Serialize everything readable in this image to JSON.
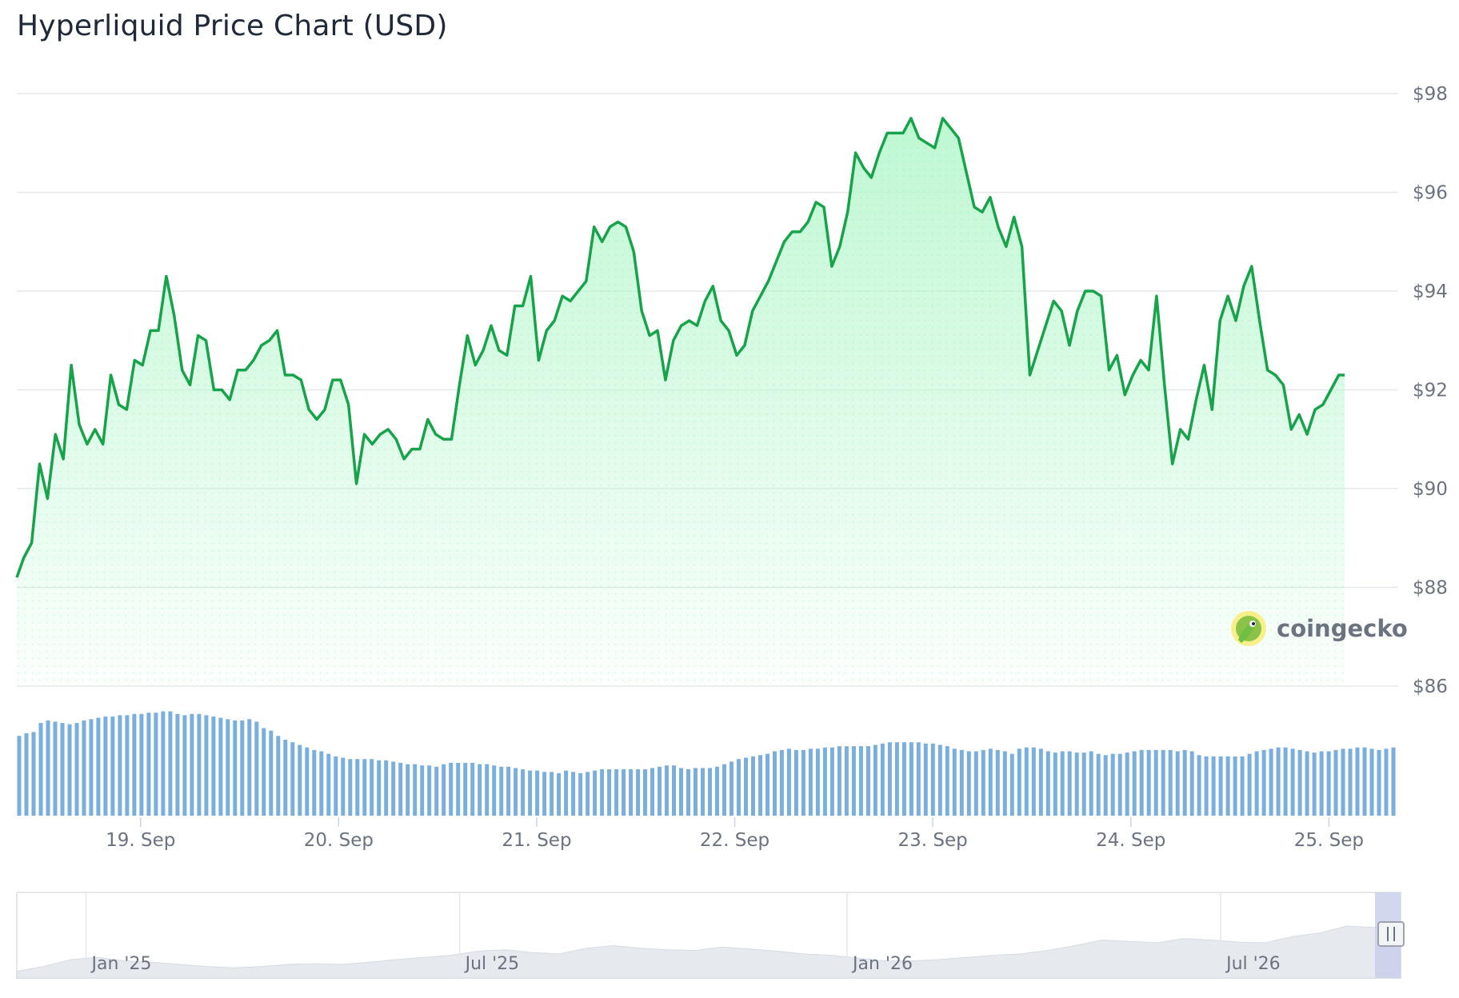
{
  "title": "Hyperliquid Price Chart (USD)",
  "brand": {
    "name": "coingecko",
    "icon": "gecko-logo-icon"
  },
  "colors": {
    "line": "#16a34a",
    "area_top": "#bbf7d0",
    "grid": "#e5e7eb",
    "volume": "#7aaedc",
    "navigator_fill": "#e6eaef",
    "navigator_handle": "#c7cde8"
  },
  "chart_data": {
    "type": "line",
    "title": "Hyperliquid Price Chart (USD)",
    "y_ticks": [
      "$98",
      "$96",
      "$94",
      "$92",
      "$90",
      "$88",
      "$86"
    ],
    "y_tick_values": [
      98,
      96,
      94,
      92,
      90,
      88,
      86
    ],
    "ylim": [
      86,
      98
    ],
    "x_ticks": [
      "19. Sep",
      "20. Sep",
      "21. Sep",
      "22. Sep",
      "23. Sep",
      "24. Sep",
      "25. Sep"
    ],
    "x_tick_positions": [
      1.0,
      2.0,
      3.0,
      4.0,
      5.0,
      6.0,
      7.0
    ],
    "xlim": [
      0.375,
      7.35
    ],
    "grid": true,
    "series": [
      {
        "price_points": [
          [
            0.375,
            88.2
          ],
          [
            0.41,
            88.6
          ],
          [
            0.45,
            88.9
          ],
          [
            0.49,
            90.5
          ],
          [
            0.53,
            89.8
          ],
          [
            0.57,
            91.1
          ],
          [
            0.61,
            90.6
          ],
          [
            0.65,
            92.5
          ],
          [
            0.69,
            91.3
          ],
          [
            0.73,
            90.9
          ],
          [
            0.77,
            91.2
          ],
          [
            0.81,
            90.9
          ],
          [
            0.85,
            92.3
          ],
          [
            0.89,
            91.7
          ],
          [
            0.93,
            91.6
          ],
          [
            0.97,
            92.6
          ],
          [
            1.01,
            92.5
          ],
          [
            1.05,
            93.2
          ],
          [
            1.09,
            93.2
          ],
          [
            1.13,
            94.3
          ],
          [
            1.17,
            93.5
          ],
          [
            1.21,
            92.4
          ],
          [
            1.25,
            92.1
          ],
          [
            1.29,
            93.1
          ],
          [
            1.33,
            93.0
          ],
          [
            1.37,
            92.0
          ],
          [
            1.41,
            92.0
          ],
          [
            1.45,
            91.8
          ],
          [
            1.49,
            92.4
          ],
          [
            1.53,
            92.4
          ],
          [
            1.57,
            92.6
          ],
          [
            1.61,
            92.9
          ],
          [
            1.65,
            93.0
          ],
          [
            1.69,
            93.2
          ],
          [
            1.73,
            92.3
          ],
          [
            1.77,
            92.3
          ],
          [
            1.81,
            92.2
          ],
          [
            1.85,
            91.6
          ],
          [
            1.89,
            91.4
          ],
          [
            1.93,
            91.6
          ],
          [
            1.97,
            92.2
          ],
          [
            2.01,
            92.2
          ],
          [
            2.05,
            91.7
          ],
          [
            2.09,
            90.1
          ],
          [
            2.13,
            91.1
          ],
          [
            2.17,
            90.9
          ],
          [
            2.21,
            91.1
          ],
          [
            2.25,
            91.2
          ],
          [
            2.29,
            91.0
          ],
          [
            2.33,
            90.6
          ],
          [
            2.37,
            90.8
          ],
          [
            2.41,
            90.8
          ],
          [
            2.45,
            91.4
          ],
          [
            2.49,
            91.1
          ],
          [
            2.53,
            91.0
          ],
          [
            2.57,
            91.0
          ],
          [
            2.61,
            92.1
          ],
          [
            2.65,
            93.1
          ],
          [
            2.69,
            92.5
          ],
          [
            2.73,
            92.8
          ],
          [
            2.77,
            93.3
          ],
          [
            2.81,
            92.8
          ],
          [
            2.85,
            92.7
          ],
          [
            2.89,
            93.7
          ],
          [
            2.93,
            93.7
          ],
          [
            2.97,
            94.3
          ],
          [
            3.01,
            92.6
          ],
          [
            3.05,
            93.2
          ],
          [
            3.09,
            93.4
          ],
          [
            3.13,
            93.9
          ],
          [
            3.17,
            93.8
          ],
          [
            3.21,
            94.0
          ],
          [
            3.25,
            94.2
          ],
          [
            3.29,
            95.3
          ],
          [
            3.33,
            95.0
          ],
          [
            3.37,
            95.3
          ],
          [
            3.41,
            95.4
          ],
          [
            3.45,
            95.3
          ],
          [
            3.49,
            94.8
          ],
          [
            3.53,
            93.6
          ],
          [
            3.57,
            93.1
          ],
          [
            3.61,
            93.2
          ],
          [
            3.65,
            92.2
          ],
          [
            3.69,
            93.0
          ],
          [
            3.73,
            93.3
          ],
          [
            3.77,
            93.4
          ],
          [
            3.81,
            93.3
          ],
          [
            3.85,
            93.8
          ],
          [
            3.89,
            94.1
          ],
          [
            3.93,
            93.4
          ],
          [
            3.97,
            93.2
          ],
          [
            4.01,
            92.7
          ],
          [
            4.05,
            92.9
          ],
          [
            4.09,
            93.6
          ],
          [
            4.13,
            93.9
          ],
          [
            4.17,
            94.2
          ],
          [
            4.21,
            94.6
          ],
          [
            4.25,
            95.0
          ],
          [
            4.29,
            95.2
          ],
          [
            4.33,
            95.2
          ],
          [
            4.37,
            95.4
          ],
          [
            4.41,
            95.8
          ],
          [
            4.45,
            95.7
          ],
          [
            4.49,
            94.5
          ],
          [
            4.53,
            94.9
          ],
          [
            4.57,
            95.6
          ],
          [
            4.61,
            96.8
          ],
          [
            4.65,
            96.5
          ],
          [
            4.69,
            96.3
          ],
          [
            4.73,
            96.8
          ],
          [
            4.77,
            97.2
          ],
          [
            4.81,
            97.2
          ],
          [
            4.85,
            97.2
          ],
          [
            4.89,
            97.5
          ],
          [
            4.93,
            97.1
          ],
          [
            4.97,
            97.0
          ],
          [
            5.01,
            96.9
          ],
          [
            5.05,
            97.5
          ],
          [
            5.09,
            97.3
          ],
          [
            5.13,
            97.1
          ],
          [
            5.17,
            96.4
          ],
          [
            5.21,
            95.7
          ],
          [
            5.25,
            95.6
          ],
          [
            5.29,
            95.9
          ],
          [
            5.33,
            95.3
          ],
          [
            5.37,
            94.9
          ],
          [
            5.41,
            95.5
          ],
          [
            5.45,
            94.9
          ],
          [
            5.49,
            92.3
          ],
          [
            5.53,
            92.8
          ],
          [
            5.57,
            93.3
          ],
          [
            5.61,
            93.8
          ],
          [
            5.65,
            93.6
          ],
          [
            5.69,
            92.9
          ],
          [
            5.73,
            93.6
          ],
          [
            5.77,
            94.0
          ],
          [
            5.81,
            94.0
          ],
          [
            5.85,
            93.9
          ],
          [
            5.89,
            92.4
          ],
          [
            5.93,
            92.7
          ],
          [
            5.97,
            91.9
          ],
          [
            6.01,
            92.3
          ],
          [
            6.05,
            92.6
          ],
          [
            6.09,
            92.4
          ],
          [
            6.13,
            93.9
          ],
          [
            6.17,
            92.1
          ],
          [
            6.21,
            90.5
          ],
          [
            6.25,
            91.2
          ],
          [
            6.29,
            91.0
          ],
          [
            6.33,
            91.8
          ],
          [
            6.37,
            92.5
          ],
          [
            6.41,
            91.6
          ],
          [
            6.45,
            93.4
          ],
          [
            6.49,
            93.9
          ],
          [
            6.53,
            93.4
          ],
          [
            6.57,
            94.1
          ],
          [
            6.61,
            94.5
          ],
          [
            6.65,
            93.4
          ],
          [
            6.69,
            92.4
          ],
          [
            6.73,
            92.3
          ],
          [
            6.77,
            92.1
          ],
          [
            6.81,
            91.2
          ],
          [
            6.85,
            91.5
          ],
          [
            6.89,
            91.1
          ],
          [
            6.93,
            91.6
          ],
          [
            6.97,
            91.7
          ],
          [
            7.01,
            92.0
          ],
          [
            7.05,
            92.3
          ],
          [
            7.08,
            92.3
          ]
        ]
      }
    ],
    "volume_relative": [
      0.62,
      0.64,
      0.65,
      0.72,
      0.74,
      0.73,
      0.72,
      0.71,
      0.72,
      0.74,
      0.75,
      0.76,
      0.77,
      0.77,
      0.78,
      0.78,
      0.79,
      0.79,
      0.8,
      0.8,
      0.81,
      0.81,
      0.79,
      0.78,
      0.79,
      0.79,
      0.78,
      0.77,
      0.76,
      0.75,
      0.74,
      0.74,
      0.75,
      0.73,
      0.68,
      0.66,
      0.62,
      0.59,
      0.57,
      0.55,
      0.53,
      0.51,
      0.5,
      0.48,
      0.46,
      0.45,
      0.44,
      0.44,
      0.44,
      0.44,
      0.43,
      0.43,
      0.42,
      0.41,
      0.4,
      0.4,
      0.39,
      0.39,
      0.38,
      0.4,
      0.41,
      0.41,
      0.41,
      0.41,
      0.4,
      0.4,
      0.39,
      0.38,
      0.38,
      0.37,
      0.36,
      0.35,
      0.35,
      0.34,
      0.34,
      0.33,
      0.35,
      0.34,
      0.33,
      0.34,
      0.35,
      0.36,
      0.36,
      0.36,
      0.36,
      0.36,
      0.36,
      0.36,
      0.37,
      0.38,
      0.39,
      0.39,
      0.37,
      0.36,
      0.37,
      0.37,
      0.37,
      0.38,
      0.4,
      0.42,
      0.44,
      0.45,
      0.46,
      0.47,
      0.48,
      0.5,
      0.51,
      0.52,
      0.51,
      0.51,
      0.52,
      0.52,
      0.53,
      0.53,
      0.54,
      0.54,
      0.54,
      0.54,
      0.54,
      0.55,
      0.56,
      0.57,
      0.57,
      0.57,
      0.57,
      0.57,
      0.56,
      0.56,
      0.55,
      0.54,
      0.52,
      0.51,
      0.5,
      0.5,
      0.51,
      0.52,
      0.51,
      0.5,
      0.48,
      0.52,
      0.53,
      0.53,
      0.52,
      0.5,
      0.49,
      0.5,
      0.5,
      0.49,
      0.49,
      0.5,
      0.48,
      0.47,
      0.48,
      0.48,
      0.49,
      0.5,
      0.51,
      0.51,
      0.51,
      0.51,
      0.51,
      0.5,
      0.51,
      0.5,
      0.47,
      0.46,
      0.46,
      0.46,
      0.46,
      0.46,
      0.46,
      0.48,
      0.5,
      0.51,
      0.52,
      0.53,
      0.53,
      0.52,
      0.51,
      0.5,
      0.49,
      0.5,
      0.5,
      0.51,
      0.52,
      0.52,
      0.53,
      0.53,
      0.52,
      0.51,
      0.52,
      0.53
    ],
    "navigator": {
      "labels": [
        "Jan '25",
        "Jul '25",
        "Jan '26",
        "Jul '26"
      ],
      "label_positions": [
        0.05,
        0.32,
        0.6,
        0.87
      ],
      "selection": [
        0.985,
        1.0
      ]
    }
  }
}
